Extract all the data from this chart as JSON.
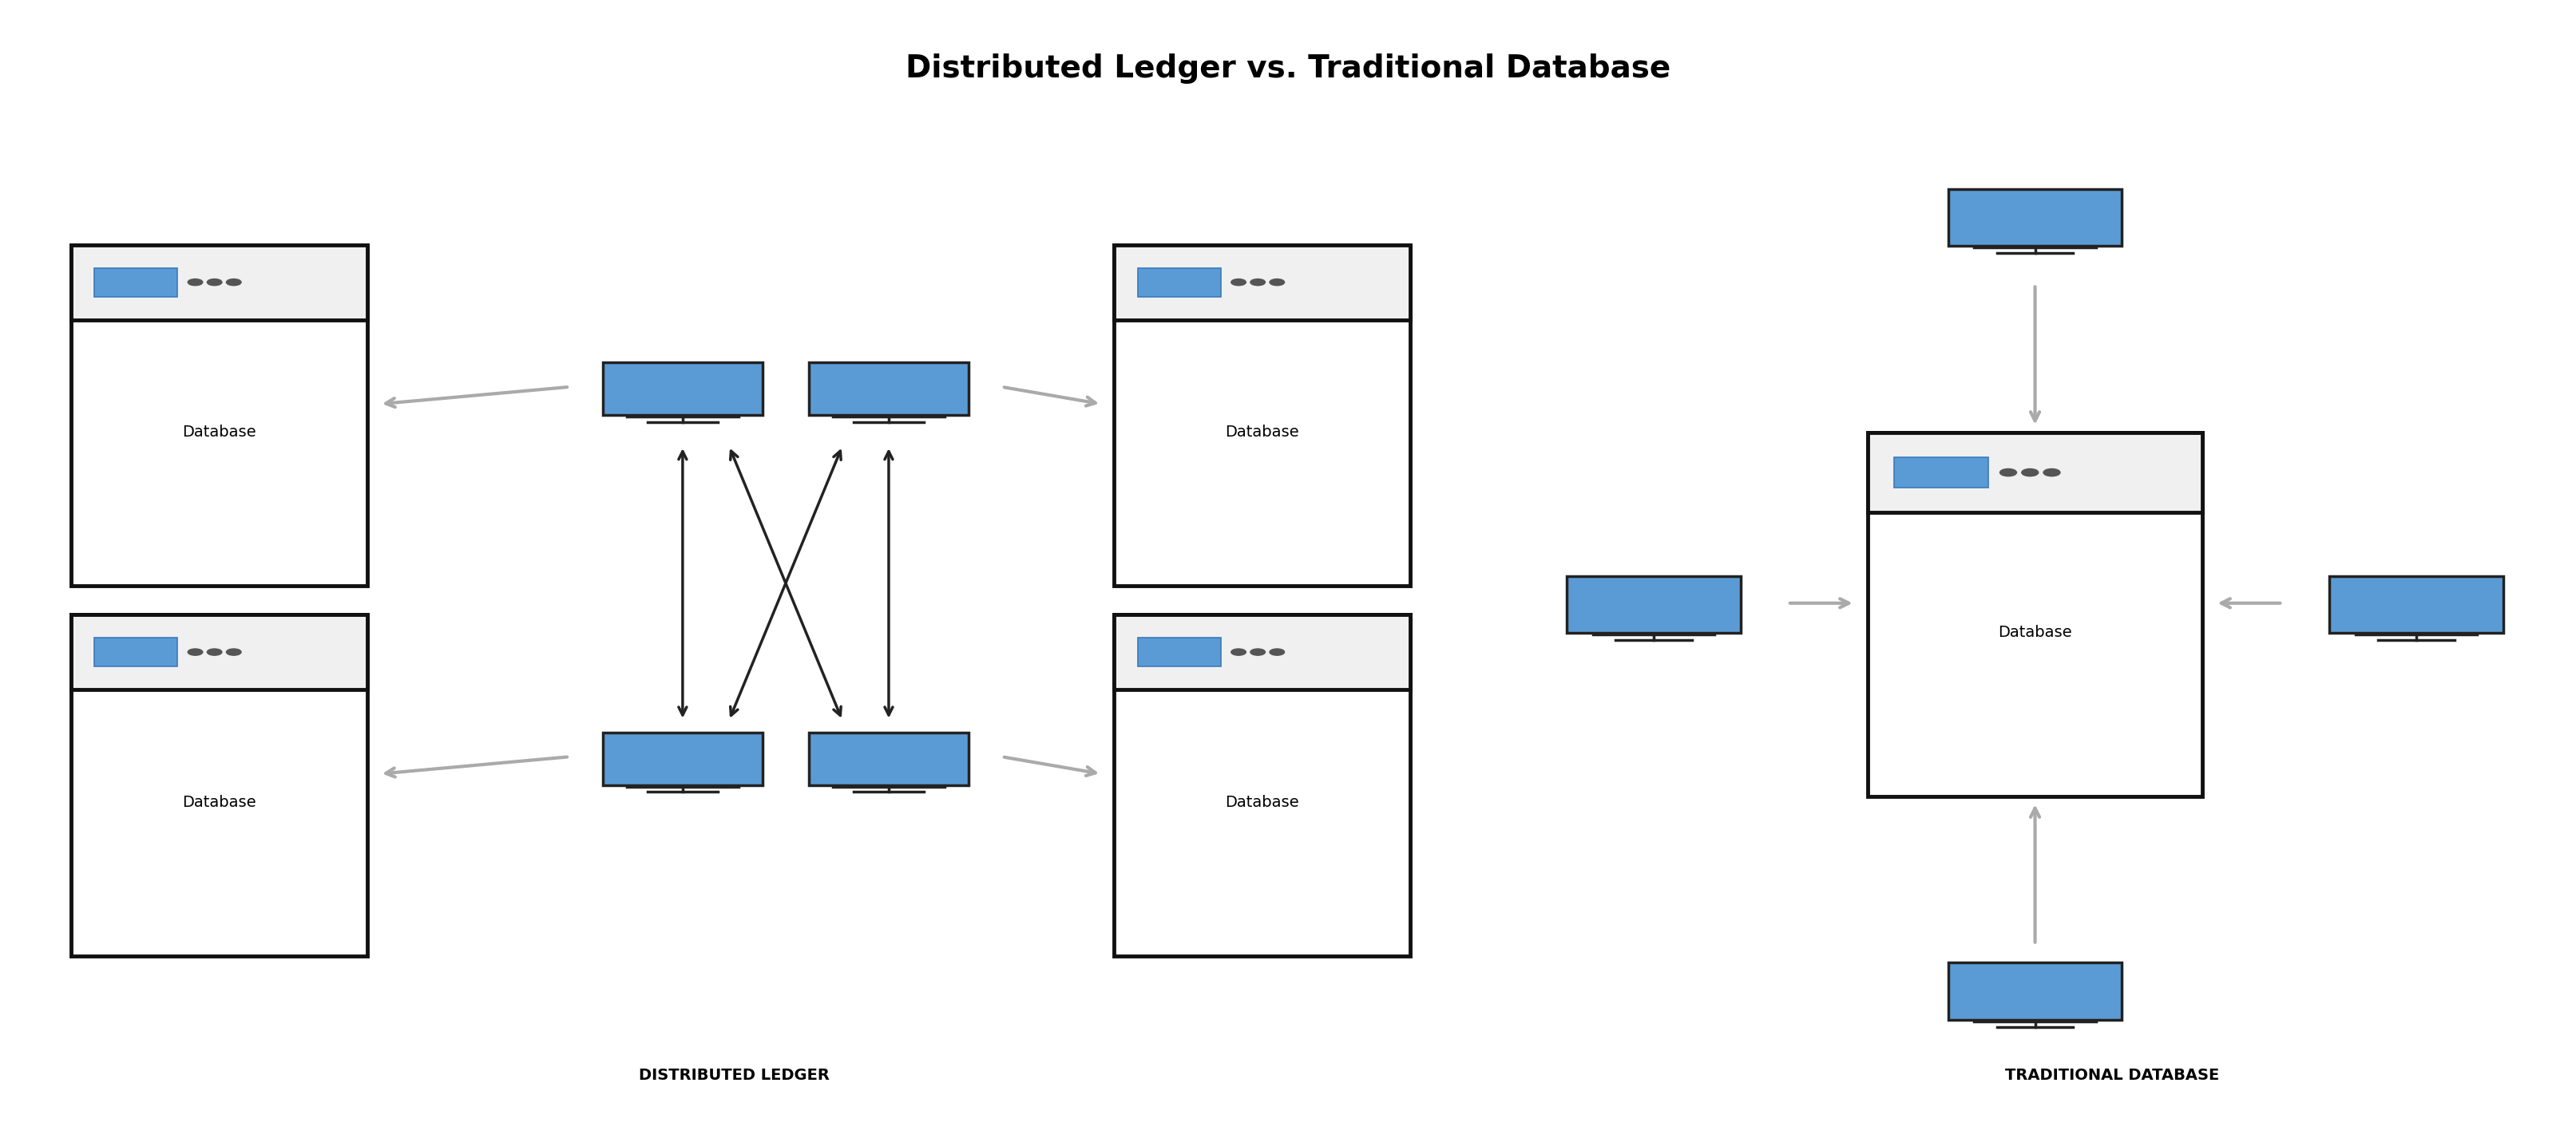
{
  "title": "Distributed Ledger vs. Traditional Database",
  "title_fontsize": 28,
  "title_fontweight": "bold",
  "bg_color": "#ffffff",
  "label_distributed": "DISTRIBUTED LEDGER",
  "label_traditional": "TRADITIONAL DATABASE",
  "label_fontsize": 14,
  "db_box_color": "#ffffff",
  "db_box_edge": "#111111",
  "db_text": "Database",
  "db_text_fontsize": 14,
  "monitor_body_color": "#5b9bd5",
  "monitor_outline_color": "#222222",
  "arrow_dark_color": "#222222",
  "arrow_gray_color": "#aaaaaa"
}
